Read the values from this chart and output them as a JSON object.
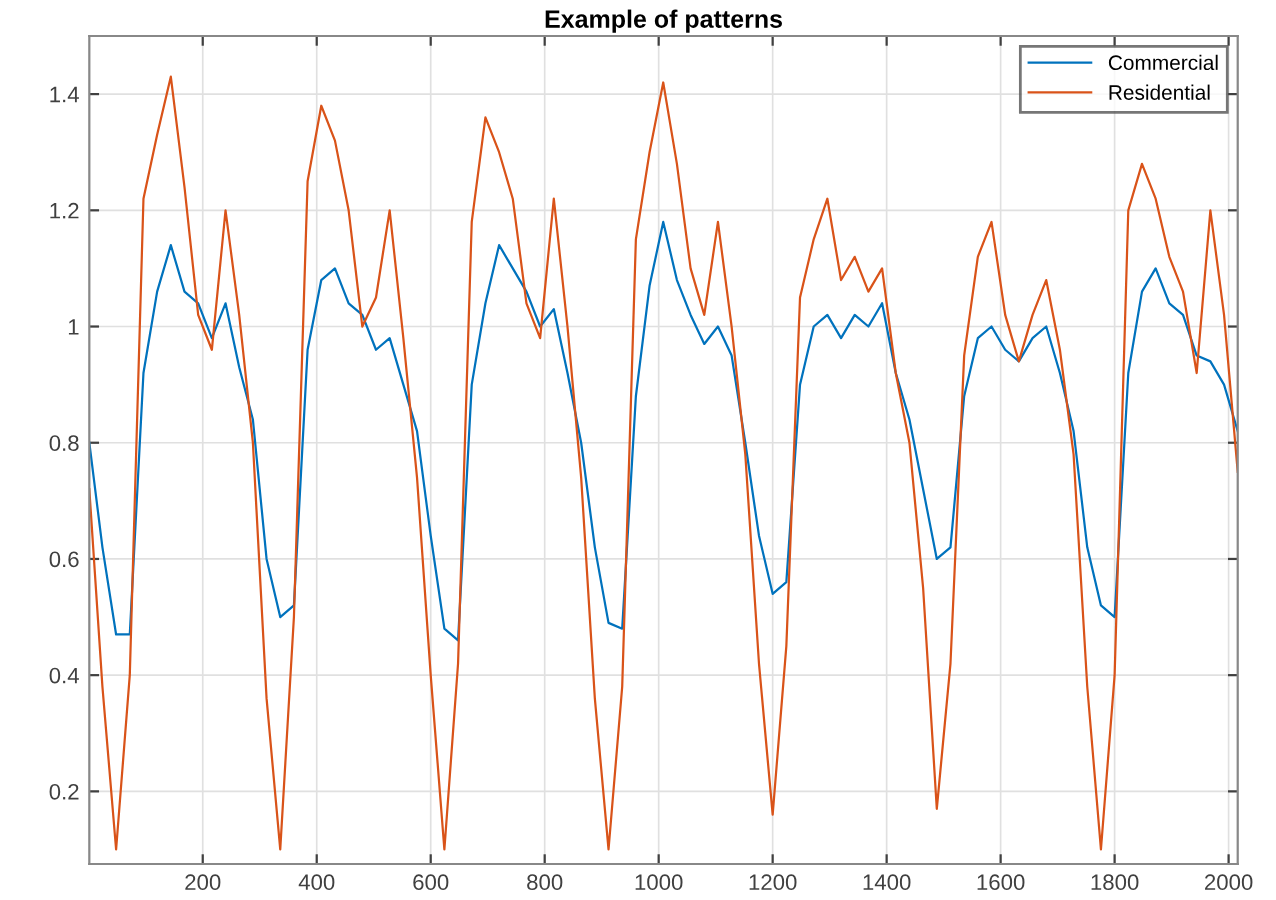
{
  "chart_data": {
    "type": "line",
    "title": "Example of patterns",
    "x": [
      1,
      24,
      48,
      72,
      96,
      120,
      144,
      168,
      192,
      216,
      240,
      264,
      288,
      312,
      336,
      360,
      384,
      408,
      432,
      456,
      480,
      504,
      528,
      552,
      576,
      600,
      624,
      648,
      672,
      696,
      720,
      744,
      768,
      792,
      816,
      840,
      864,
      888,
      912,
      936,
      960,
      984,
      1008,
      1032,
      1056,
      1080,
      1104,
      1128,
      1152,
      1176,
      1200,
      1224,
      1248,
      1272,
      1296,
      1320,
      1344,
      1368,
      1392,
      1416,
      1440,
      1464,
      1488,
      1512,
      1536,
      1560,
      1584,
      1608,
      1632,
      1656,
      1680,
      1704,
      1728,
      1752,
      1776,
      1800,
      1824,
      1848,
      1872,
      1896,
      1920,
      1944,
      1968,
      1992,
      2016
    ],
    "series": [
      {
        "name": "Commercial",
        "color": "#0072bd",
        "values": [
          0.8,
          0.62,
          0.47,
          0.47,
          0.92,
          1.06,
          1.14,
          1.06,
          1.04,
          0.98,
          1.04,
          0.93,
          0.84,
          0.6,
          0.5,
          0.52,
          0.96,
          1.08,
          1.1,
          1.04,
          1.02,
          0.96,
          0.98,
          0.9,
          0.82,
          0.64,
          0.48,
          0.46,
          0.9,
          1.04,
          1.14,
          1.1,
          1.06,
          1.0,
          1.03,
          0.92,
          0.8,
          0.62,
          0.49,
          0.48,
          0.88,
          1.07,
          1.18,
          1.08,
          1.02,
          0.97,
          1.0,
          0.95,
          0.8,
          0.64,
          0.54,
          0.56,
          0.9,
          1.0,
          1.02,
          0.98,
          1.02,
          1.0,
          1.04,
          0.92,
          0.84,
          0.72,
          0.6,
          0.62,
          0.88,
          0.98,
          1.0,
          0.96,
          0.94,
          0.98,
          1.0,
          0.92,
          0.82,
          0.62,
          0.52,
          0.5,
          0.92,
          1.06,
          1.1,
          1.04,
          1.02,
          0.95,
          0.94,
          0.9,
          0.82
        ]
      },
      {
        "name": "Residential",
        "color": "#d95319",
        "values": [
          0.72,
          0.38,
          0.1,
          0.4,
          1.22,
          1.33,
          1.43,
          1.24,
          1.02,
          0.96,
          1.2,
          1.02,
          0.8,
          0.36,
          0.1,
          0.5,
          1.25,
          1.38,
          1.32,
          1.2,
          1.0,
          1.05,
          1.2,
          0.98,
          0.74,
          0.4,
          0.1,
          0.42,
          1.18,
          1.36,
          1.3,
          1.22,
          1.04,
          0.98,
          1.22,
          1.0,
          0.74,
          0.36,
          0.1,
          0.38,
          1.15,
          1.3,
          1.42,
          1.28,
          1.1,
          1.02,
          1.18,
          1.0,
          0.78,
          0.42,
          0.16,
          0.45,
          1.05,
          1.15,
          1.22,
          1.08,
          1.12,
          1.06,
          1.1,
          0.92,
          0.8,
          0.55,
          0.17,
          0.42,
          0.95,
          1.12,
          1.18,
          1.02,
          0.94,
          1.02,
          1.08,
          0.96,
          0.78,
          0.38,
          0.1,
          0.4,
          1.2,
          1.28,
          1.22,
          1.12,
          1.06,
          0.92,
          1.2,
          1.02,
          0.75
        ]
      }
    ],
    "xlim": [
      1,
      2016
    ],
    "ylim": [
      0.075,
      1.5
    ],
    "xticks": [
      200,
      400,
      600,
      800,
      1000,
      1200,
      1400,
      1600,
      1800,
      2000
    ],
    "yticks": [
      0.2,
      0.4,
      0.6,
      0.8,
      1,
      1.2,
      1.4
    ],
    "grid": true,
    "legend": "top right"
  }
}
